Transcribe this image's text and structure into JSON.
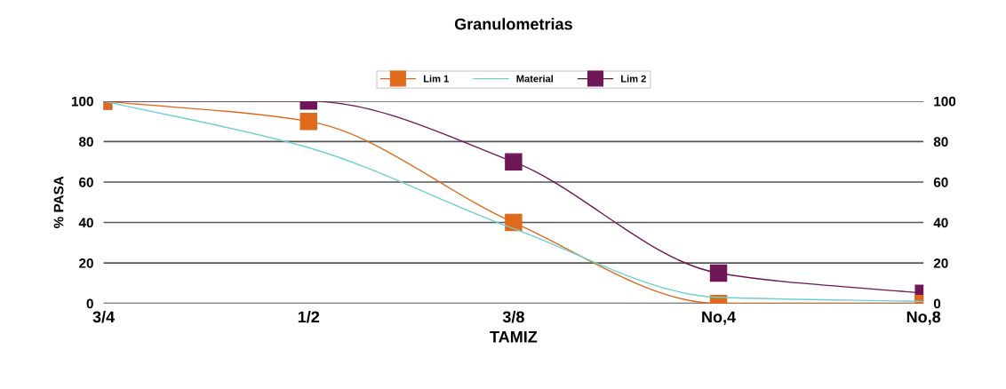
{
  "chart_data": {
    "type": "line",
    "title": "Granulometrias",
    "xlabel": "TAMIZ",
    "ylabel": "% PASA",
    "categories": [
      "3/4",
      "1/2",
      "3/8",
      "No,4",
      "No,8"
    ],
    "series": [
      {
        "name": "Lim 1",
        "color": "#e06a1c",
        "values": [
          100,
          90,
          40,
          0,
          0
        ],
        "marker": "square"
      },
      {
        "name": "Material",
        "color": "#6fd0d0",
        "values": [
          100,
          77,
          37,
          3,
          1
        ],
        "marker": "none"
      },
      {
        "name": "Lim 2",
        "color": "#6e1656",
        "values": [
          100,
          100,
          70,
          15,
          5
        ],
        "marker": "square"
      }
    ],
    "ylim": [
      0,
      100
    ],
    "yticks": [
      0,
      20,
      40,
      60,
      80,
      100
    ],
    "y2lim": [
      0,
      100
    ],
    "y2ticks": [
      0,
      20,
      40,
      60,
      80,
      100
    ],
    "grid": "y",
    "legend": "top",
    "line_style": "solid"
  }
}
